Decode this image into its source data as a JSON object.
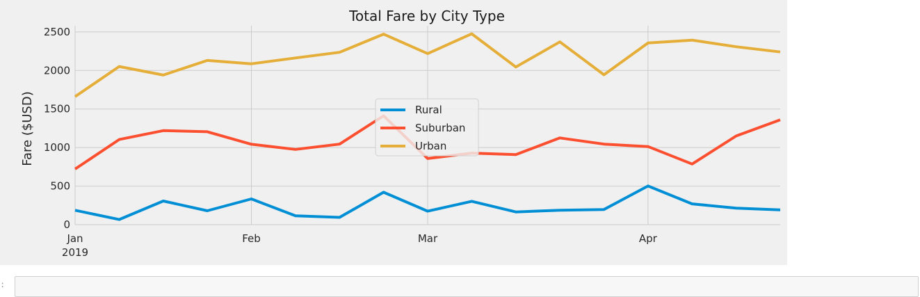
{
  "notebook": {
    "prompt": ":"
  },
  "chart_data": {
    "type": "line",
    "title": "Total Fare by City Type",
    "xlabel": "",
    "ylabel": "Fare ($USD)",
    "x": [
      "2019-01-06",
      "2019-01-13",
      "2019-01-20",
      "2019-01-27",
      "2019-02-03",
      "2019-02-10",
      "2019-02-17",
      "2019-02-24",
      "2019-03-03",
      "2019-03-10",
      "2019-03-17",
      "2019-03-24",
      "2019-03-31",
      "2019-04-07",
      "2019-04-14",
      "2019-04-21",
      "2019-04-28"
    ],
    "xlim": [
      "2019-01-06",
      "2019-04-28"
    ],
    "x_ticks": [
      {
        "date": "2019-01-06",
        "label": "Jan",
        "sublabel": "2019"
      },
      {
        "date": "2019-02-03",
        "label": "Feb",
        "sublabel": ""
      },
      {
        "date": "2019-03-03",
        "label": "Mar",
        "sublabel": ""
      },
      {
        "date": "2019-04-07",
        "label": "Apr",
        "sublabel": ""
      }
    ],
    "ylim": [
      0,
      2580
    ],
    "yticks": [
      0,
      500,
      1000,
      1500,
      2000,
      2500
    ],
    "grid": true,
    "legend_position": "center",
    "series": [
      {
        "name": "Rural",
        "color": "#008fd5",
        "values": [
          187,
          67,
          307,
          180,
          334,
          115,
          95,
          420,
          175,
          303,
          165,
          187,
          197,
          502,
          270,
          215,
          191
        ]
      },
      {
        "name": "Suburban",
        "color": "#fc4f30",
        "values": [
          722,
          1104,
          1220,
          1205,
          1043,
          976,
          1045,
          1412,
          858,
          928,
          908,
          1125,
          1045,
          1013,
          787,
          1150,
          1360
        ]
      },
      {
        "name": "Urban",
        "color": "#e5ae38",
        "values": [
          1661,
          2051,
          1940,
          2130,
          2087,
          2162,
          2235,
          2471,
          2218,
          2475,
          2045,
          2371,
          1944,
          2357,
          2393,
          2308,
          2240
        ]
      }
    ]
  }
}
